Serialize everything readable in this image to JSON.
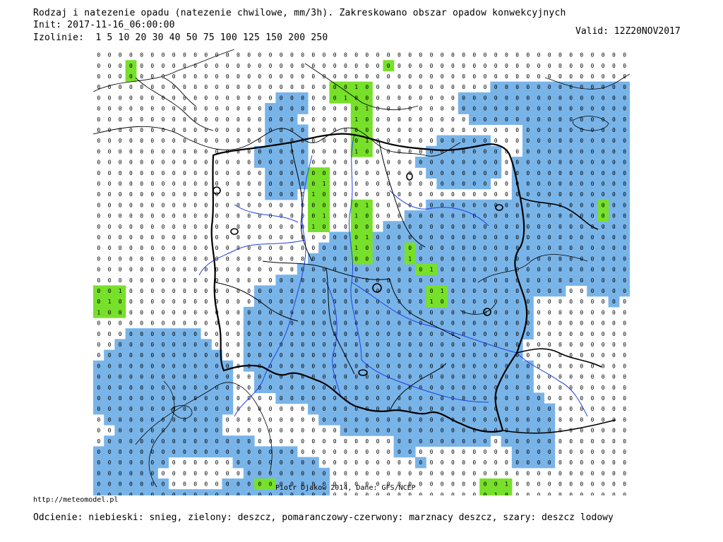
{
  "header": {
    "title": "Rodzaj i natezenie opadu (natezenie chwilowe, mm/3h). Zakreskowano obszar opadow konwekcyjnych",
    "init": "Init: 2017-11-16_06:00:00",
    "isolines_label": "Izolinie:",
    "isolines_values": "1 5 10 20 30 40 50 75 100 125 150 200 250",
    "valid": "Valid: 12Z20NOV2017"
  },
  "map": {
    "credit": "Piotr Djakow 2014, Dane: GFS/NCEP",
    "colors": {
      "snow": "#79b4e8",
      "rain": "#77e02a",
      "border": "#000000",
      "river": "#2040e0",
      "isoline": "#000000"
    }
  },
  "footer": {
    "url": "http://meteomodel.pl",
    "legend": "Odcienie: niebieski: snieg, zielony: deszcz, pomaranczowy-czerwony: marznacy deszcz, szary: deszcz lodowy"
  }
}
